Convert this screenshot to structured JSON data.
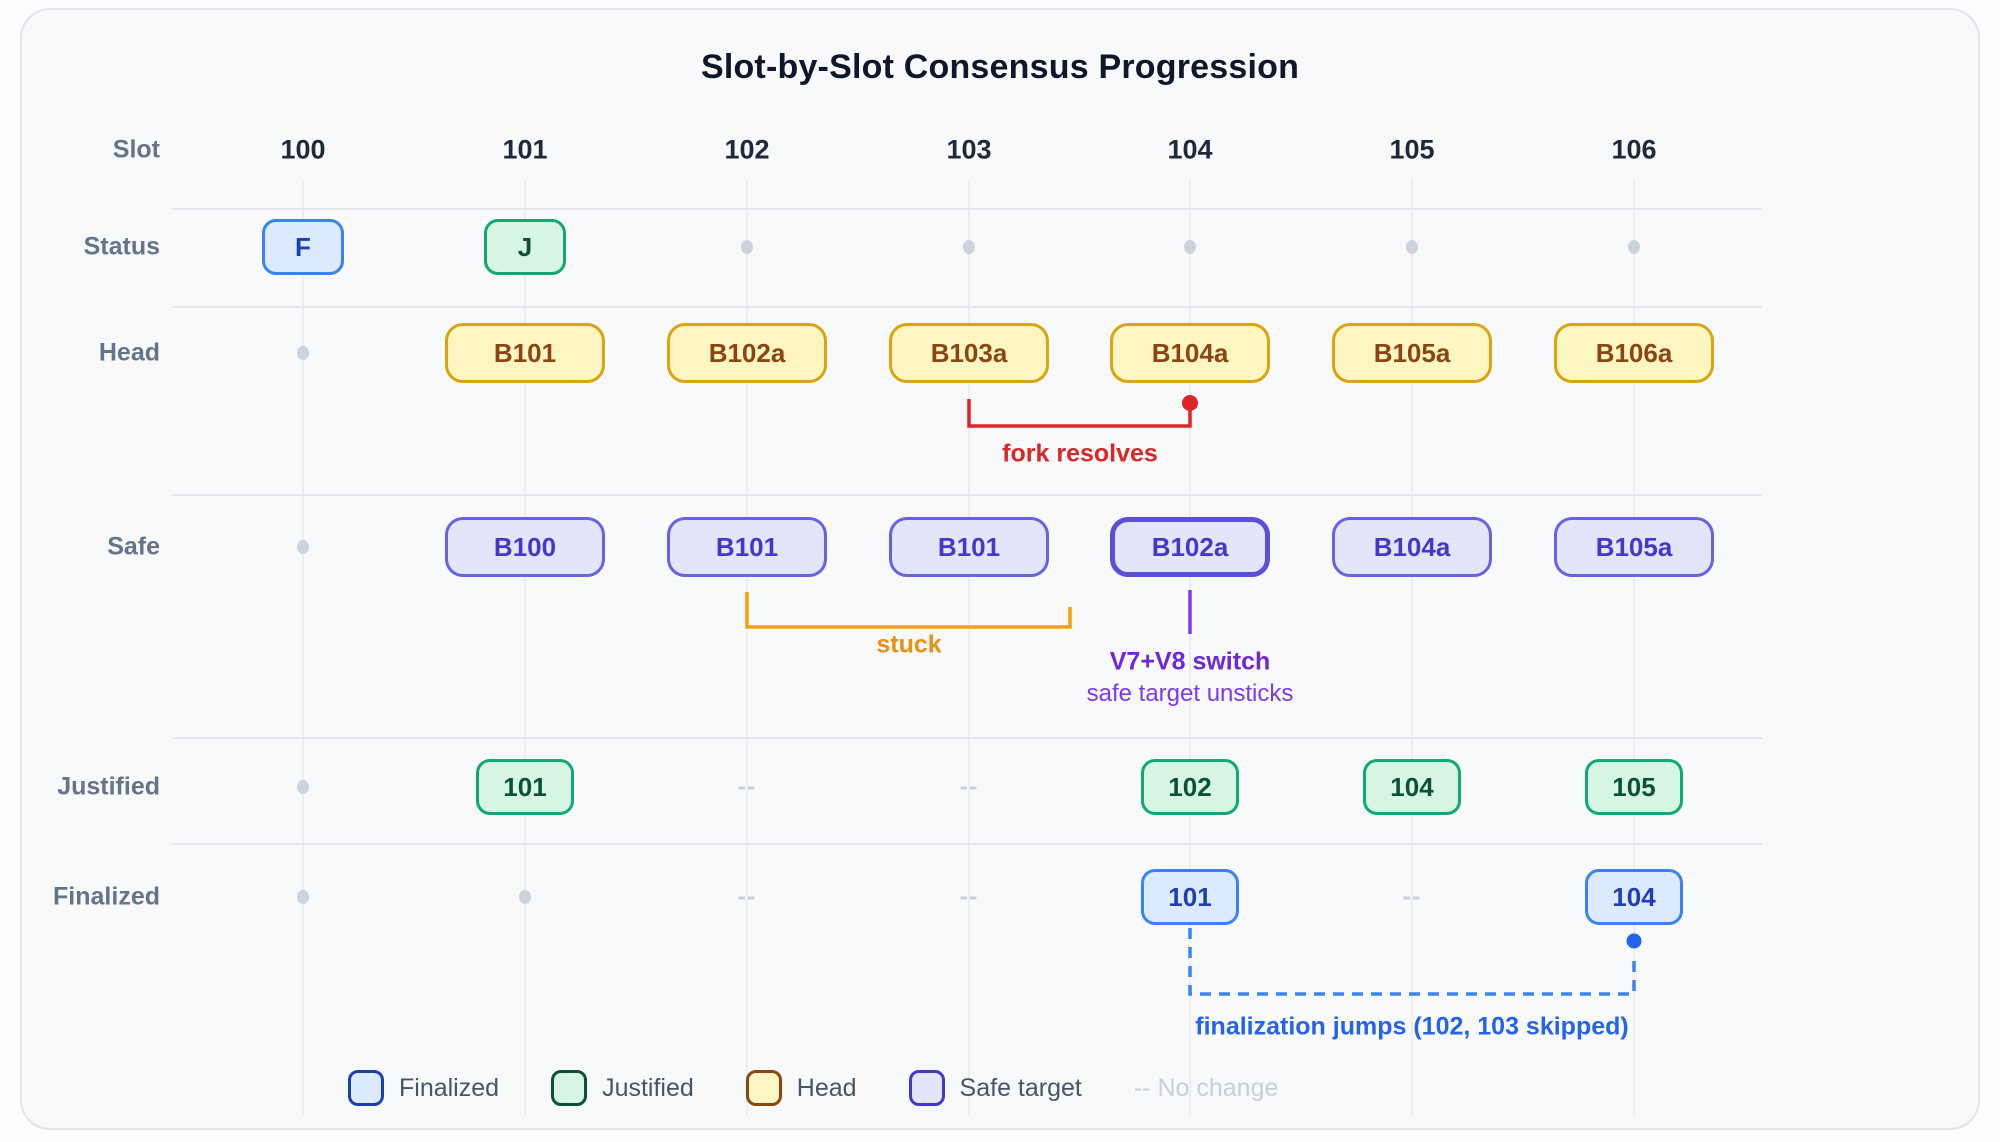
{
  "title": "Slot-by-Slot Consensus Progression",
  "row_header_label": "Slot",
  "slots": [
    "100",
    "101",
    "102",
    "103",
    "104",
    "105",
    "106"
  ],
  "row_labels": {
    "status": "Status",
    "head": "Head",
    "safe": "Safe",
    "justified": "Justified",
    "finalized": "Finalized"
  },
  "grid": {
    "status": [
      {
        "type": "box",
        "variant": "finalized",
        "size": "sm",
        "text": "F"
      },
      {
        "type": "box",
        "variant": "justified",
        "size": "sm",
        "text": "J"
      },
      {
        "type": "dot"
      },
      {
        "type": "dot"
      },
      {
        "type": "dot"
      },
      {
        "type": "dot"
      },
      {
        "type": "dot"
      }
    ],
    "head": [
      {
        "type": "dot"
      },
      {
        "type": "box",
        "variant": "head",
        "size": "lg",
        "text": "B101"
      },
      {
        "type": "box",
        "variant": "head",
        "size": "lg",
        "text": "B102a"
      },
      {
        "type": "box",
        "variant": "head",
        "size": "lg",
        "text": "B103a"
      },
      {
        "type": "box",
        "variant": "head",
        "size": "lg",
        "text": "B104a"
      },
      {
        "type": "box",
        "variant": "head",
        "size": "lg",
        "text": "B105a"
      },
      {
        "type": "box",
        "variant": "head",
        "size": "lg",
        "text": "B106a"
      }
    ],
    "safe": [
      {
        "type": "dot"
      },
      {
        "type": "box",
        "variant": "safe",
        "size": "lg",
        "text": "B100"
      },
      {
        "type": "box",
        "variant": "safe",
        "size": "lg",
        "text": "B101"
      },
      {
        "type": "box",
        "variant": "safe",
        "size": "lg",
        "text": "B101"
      },
      {
        "type": "box",
        "variant": "safe",
        "size": "lg",
        "text": "B102a",
        "emphasis": true
      },
      {
        "type": "box",
        "variant": "safe",
        "size": "lg",
        "text": "B104a"
      },
      {
        "type": "box",
        "variant": "safe",
        "size": "lg",
        "text": "B105a"
      }
    ],
    "justified": [
      {
        "type": "dot"
      },
      {
        "type": "box",
        "variant": "justified",
        "size": "num",
        "text": "101"
      },
      {
        "type": "dash",
        "text": "--"
      },
      {
        "type": "dash",
        "text": "--"
      },
      {
        "type": "box",
        "variant": "justified",
        "size": "num",
        "text": "102"
      },
      {
        "type": "box",
        "variant": "justified",
        "size": "num",
        "text": "104"
      },
      {
        "type": "box",
        "variant": "justified",
        "size": "num",
        "text": "105"
      }
    ],
    "finalized": [
      {
        "type": "dot"
      },
      {
        "type": "dot"
      },
      {
        "type": "dash",
        "text": "--"
      },
      {
        "type": "dash",
        "text": "--"
      },
      {
        "type": "box",
        "variant": "finalized",
        "size": "num",
        "text": "101"
      },
      {
        "type": "dash",
        "text": "--"
      },
      {
        "type": "box",
        "variant": "finalized",
        "size": "num",
        "text": "104"
      }
    ]
  },
  "annotations": {
    "fork_resolves": {
      "label": "fork resolves",
      "color": "#dc2626"
    },
    "stuck": {
      "label": "stuck",
      "color": "#ea8f0f"
    },
    "safe_switch": {
      "label": "V7+V8 switch",
      "sublabel": "safe target unsticks",
      "color": "#7c3aed"
    },
    "finalization_jump": {
      "label": "finalization jumps (102, 103 skipped)",
      "color": "#2563eb"
    }
  },
  "legend": {
    "items": [
      {
        "variant": "finalized",
        "label": "Finalized"
      },
      {
        "variant": "justified",
        "label": "Justified"
      },
      {
        "variant": "head",
        "label": "Head"
      },
      {
        "variant": "safe",
        "label": "Safe target"
      },
      {
        "variant": "none",
        "label": "-- No change"
      }
    ]
  },
  "colors": {
    "finalized_border": "#3b82f6",
    "finalized_bg": "#dbeafe",
    "finalized_text": "#1e40af",
    "justified_border": "#12a874",
    "justified_bg": "#d6f5e3",
    "justified_text": "#0b5138",
    "head_border": "#d9a40e",
    "head_bg": "#fdf6c2",
    "head_text": "#8a4513",
    "safe_border": "#6861e3",
    "safe_bg": "#e3e6fb",
    "safe_text": "#4338ca",
    "safe_emphasis_border": "#5b4fd8",
    "no_change": "#c9cfd8"
  }
}
